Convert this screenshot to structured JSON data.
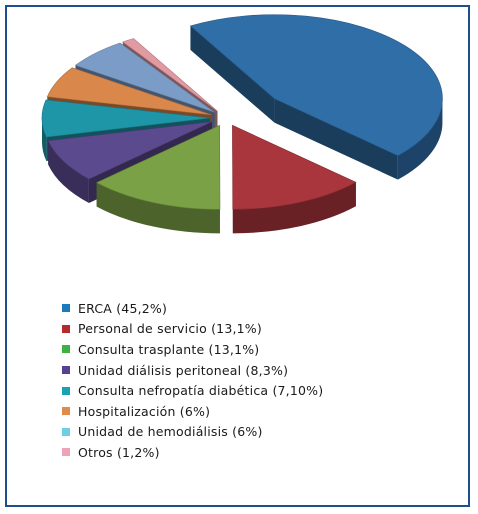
{
  "chart_data": {
    "type": "pie",
    "variant": "3d-exploded",
    "title": "",
    "slices": [
      {
        "label": "ERCA",
        "value": 45.2,
        "legend_text": "ERCA (45,2%)",
        "color": "#2f6ea7"
      },
      {
        "label": "Personal de servicio",
        "value": 13.1,
        "legend_text": "Personal de servicio (13,1%)",
        "color": "#a9363c"
      },
      {
        "label": "Consulta trasplante",
        "value": 13.1,
        "legend_text": "Consulta trasplante (13,1%)",
        "color": "#7aa145"
      },
      {
        "label": "Unidad diálisis peritoneal",
        "value": 8.3,
        "legend_text": "Unidad diálisis peritoneal (8,3%)",
        "color": "#5c4a8f"
      },
      {
        "label": "Consulta nefropatía diabética",
        "value": 7.1,
        "legend_text": "Consulta nefropatía diabética (7,10%)",
        "color": "#1f95a8"
      },
      {
        "label": "Hospitalización",
        "value": 6,
        "legend_text": "Hospitalización (6%)",
        "color": "#d9874a"
      },
      {
        "label": "Unidad de hemodiálisis",
        "value": 6,
        "legend_text": "Unidad de hemodiálisis (6%)",
        "color": "#7a9cc6"
      },
      {
        "label": "Otros",
        "value": 1.2,
        "legend_text": "Otros (1,2%)",
        "color": "#e29aa2"
      }
    ],
    "legend_swatch_colors": [
      "#1b7bbd",
      "#b52a2e",
      "#3db143",
      "#5a3f97",
      "#18a3b3",
      "#e08a4c",
      "#6fcde6",
      "#f0a2b8"
    ],
    "legend_position": "bottom-left"
  }
}
